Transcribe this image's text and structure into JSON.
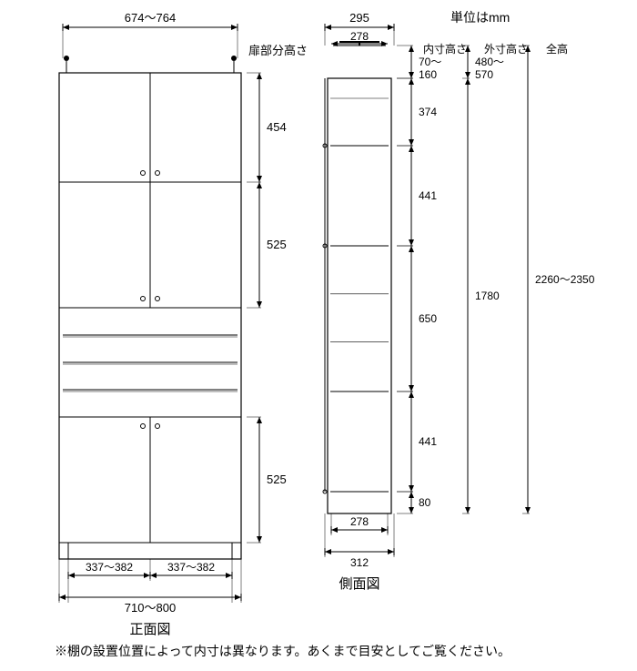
{
  "unit_label": "単位はmm",
  "front": {
    "title": "正面図",
    "top_width": "674〜764",
    "bottom_width": "710〜800",
    "half_width": "337〜382",
    "door_heights_label": "扉部分高さ",
    "h1": "454",
    "h2": "525",
    "h3": "525"
  },
  "side": {
    "title": "側面図",
    "top_width": "295",
    "inner_top": "278",
    "bottom_inner": "278",
    "bottom_outer": "312",
    "col_labels": {
      "inner": "内寸高さ",
      "outer": "外寸高さ",
      "total": "全高"
    },
    "inner": {
      "a": "70〜\n160",
      "b": "374",
      "c": "441",
      "d": "650",
      "e": "441",
      "f": "80"
    },
    "outer": {
      "top": "480〜\n570",
      "body": "1780"
    },
    "total": "2260〜2350"
  },
  "footnote": "※棚の設置位置によって内寸は異なります。あくまで目安としてご覧ください。",
  "colors": {
    "stroke": "#000000",
    "bg": "#ffffff",
    "text": "#000000"
  }
}
